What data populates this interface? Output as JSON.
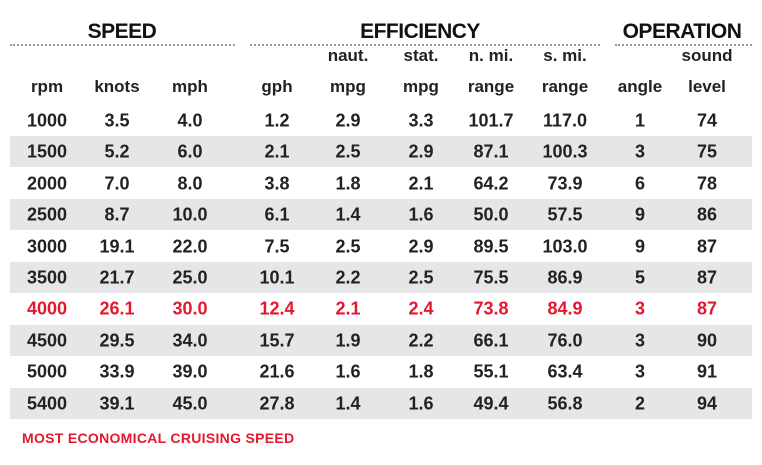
{
  "table": {
    "groups": [
      "SPEED",
      "EFFICIENCY",
      "OPERATION"
    ],
    "columns": [
      [
        "rpm"
      ],
      [
        "knots"
      ],
      [
        "mph"
      ],
      [
        "gph"
      ],
      [
        "naut.",
        "mpg"
      ],
      [
        "stat.",
        "mpg"
      ],
      [
        "n. mi.",
        "range"
      ],
      [
        "s. mi.",
        "range"
      ],
      [
        "angle"
      ],
      [
        "sound",
        "level"
      ]
    ],
    "rows": [
      [
        "1000",
        "3.5",
        "4.0",
        "1.2",
        "2.9",
        "3.3",
        "101.7",
        "117.0",
        "1",
        "74"
      ],
      [
        "1500",
        "5.2",
        "6.0",
        "2.1",
        "2.5",
        "2.9",
        "87.1",
        "100.3",
        "3",
        "75"
      ],
      [
        "2000",
        "7.0",
        "8.0",
        "3.8",
        "1.8",
        "2.1",
        "64.2",
        "73.9",
        "6",
        "78"
      ],
      [
        "2500",
        "8.7",
        "10.0",
        "6.1",
        "1.4",
        "1.6",
        "50.0",
        "57.5",
        "9",
        "86"
      ],
      [
        "3000",
        "19.1",
        "22.0",
        "7.5",
        "2.5",
        "2.9",
        "89.5",
        "103.0",
        "9",
        "87"
      ],
      [
        "3500",
        "21.7",
        "25.0",
        "10.1",
        "2.2",
        "2.5",
        "75.5",
        "86.9",
        "5",
        "87"
      ],
      [
        "4000",
        "26.1",
        "30.0",
        "12.4",
        "2.1",
        "2.4",
        "73.8",
        "84.9",
        "3",
        "87"
      ],
      [
        "4500",
        "29.5",
        "34.0",
        "15.7",
        "1.9",
        "2.2",
        "66.1",
        "76.0",
        "3",
        "90"
      ],
      [
        "5000",
        "33.9",
        "39.0",
        "21.6",
        "1.6",
        "1.8",
        "55.1",
        "63.4",
        "3",
        "91"
      ],
      [
        "5400",
        "39.1",
        "45.0",
        "27.8",
        "1.4",
        "1.6",
        "49.4",
        "56.8",
        "2",
        "94"
      ]
    ],
    "highlight_row": 6,
    "highlight_color": "#e3182d",
    "footnote": "MOST ECONOMICAL CRUISING SPEED"
  }
}
